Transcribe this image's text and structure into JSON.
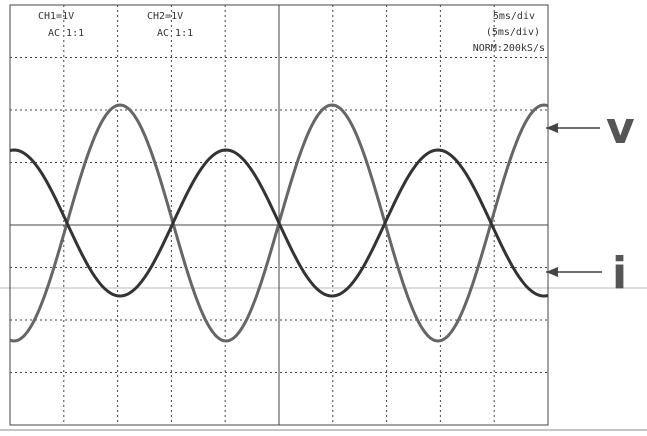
{
  "screen": {
    "ch1": {
      "scale": "CH1=1V",
      "coupling": "AC 1:1"
    },
    "ch2": {
      "scale": "CH2=1V",
      "coupling": "AC 1:1"
    },
    "timebase": "5ms/div",
    "timebase_secondary": "(5ms/div)",
    "mode": "NORM:200kS/s"
  },
  "labels": {
    "voltage": "v",
    "current": "i"
  }
}
